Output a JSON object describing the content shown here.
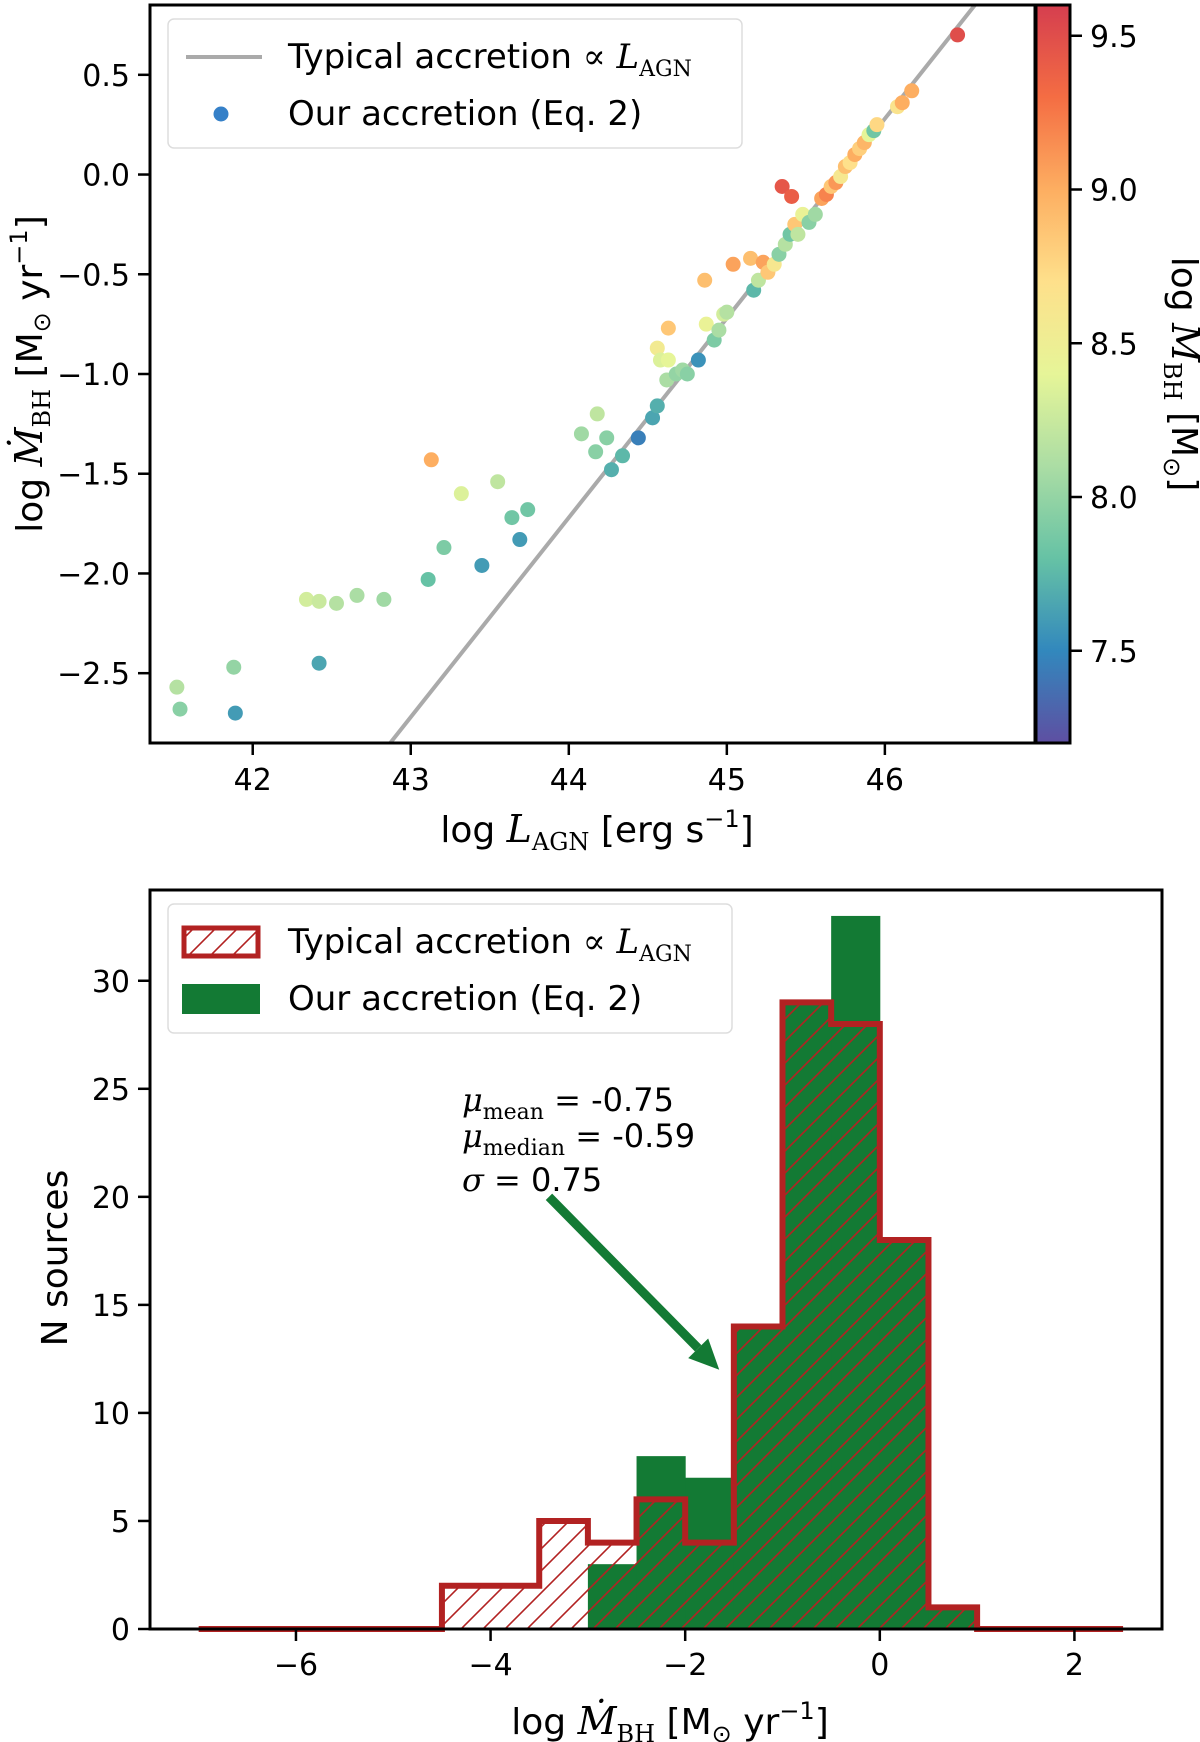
{
  "chart_data": [
    {
      "type": "scatter",
      "xlabel": "log L_AGN [erg s^-1]",
      "ylabel": "log Ṁ_BH [M⊙ yr^-1]",
      "xlim": [
        41.35,
        46.95
      ],
      "ylim": [
        -2.85,
        0.85
      ],
      "xticks": [
        42,
        43,
        44,
        45,
        46
      ],
      "yticks": [
        -2.5,
        -2.0,
        -1.5,
        -1.0,
        -0.5,
        0.0,
        0.5
      ],
      "grid": false,
      "legend": {
        "position": "top-left",
        "entries": [
          {
            "label": "Typical accretion ∝ L_AGN",
            "kind": "line",
            "color": "#aaaaaa"
          },
          {
            "label": "Our accretion (Eq. 2)",
            "kind": "marker",
            "color": "#3580c8"
          }
        ]
      },
      "line": {
        "name": "Typical accretion ∝ L_AGN",
        "slope": 1.0,
        "intercept": -45.72,
        "color": "#aaaaaa"
      },
      "colorbar": {
        "label": "log M_BH [M⊙]",
        "range": [
          7.2,
          9.6
        ],
        "ticks": [
          7.5,
          8.0,
          8.5,
          9.0,
          9.5
        ],
        "colormap": "spectral",
        "stops": [
          "#5e4fa2",
          "#3288bd",
          "#66c2a5",
          "#abdda4",
          "#e6f598",
          "#fee08b",
          "#fdae61",
          "#f46d43",
          "#d53e4f"
        ]
      },
      "points": [
        {
          "x": 41.52,
          "y": -2.57,
          "c": 8.15
        },
        {
          "x": 41.54,
          "y": -2.68,
          "c": 7.95
        },
        {
          "x": 41.88,
          "y": -2.47,
          "c": 8.0
        },
        {
          "x": 41.89,
          "y": -2.7,
          "c": 7.6
        },
        {
          "x": 42.34,
          "y": -2.13,
          "c": 8.3
        },
        {
          "x": 42.42,
          "y": -2.14,
          "c": 8.25
        },
        {
          "x": 42.42,
          "y": -2.45,
          "c": 7.65
        },
        {
          "x": 42.53,
          "y": -2.15,
          "c": 8.15
        },
        {
          "x": 42.66,
          "y": -2.11,
          "c": 8.1
        },
        {
          "x": 42.83,
          "y": -2.13,
          "c": 8.05
        },
        {
          "x": 43.11,
          "y": -2.03,
          "c": 7.8
        },
        {
          "x": 43.13,
          "y": -1.43,
          "c": 9.0
        },
        {
          "x": 43.21,
          "y": -1.87,
          "c": 7.9
        },
        {
          "x": 43.32,
          "y": -1.6,
          "c": 8.35
        },
        {
          "x": 43.45,
          "y": -1.96,
          "c": 7.6
        },
        {
          "x": 43.55,
          "y": -1.54,
          "c": 8.2
        },
        {
          "x": 43.64,
          "y": -1.72,
          "c": 7.85
        },
        {
          "x": 43.69,
          "y": -1.83,
          "c": 7.6
        },
        {
          "x": 43.74,
          "y": -1.68,
          "c": 7.85
        },
        {
          "x": 44.08,
          "y": -1.3,
          "c": 8.05
        },
        {
          "x": 44.18,
          "y": -1.2,
          "c": 8.2
        },
        {
          "x": 44.17,
          "y": -1.39,
          "c": 7.95
        },
        {
          "x": 44.24,
          "y": -1.32,
          "c": 7.95
        },
        {
          "x": 44.27,
          "y": -1.48,
          "c": 7.7
        },
        {
          "x": 44.34,
          "y": -1.41,
          "c": 7.75
        },
        {
          "x": 44.44,
          "y": -1.32,
          "c": 7.45
        },
        {
          "x": 44.53,
          "y": -1.22,
          "c": 7.65
        },
        {
          "x": 44.56,
          "y": -1.16,
          "c": 7.7
        },
        {
          "x": 44.56,
          "y": -0.87,
          "c": 8.55
        },
        {
          "x": 44.58,
          "y": -0.93,
          "c": 8.35
        },
        {
          "x": 44.62,
          "y": -1.03,
          "c": 8.1
        },
        {
          "x": 44.63,
          "y": -0.93,
          "c": 8.4
        },
        {
          "x": 44.63,
          "y": -0.77,
          "c": 8.85
        },
        {
          "x": 44.68,
          "y": -1.0,
          "c": 8.0
        },
        {
          "x": 44.72,
          "y": -0.98,
          "c": 8.05
        },
        {
          "x": 44.75,
          "y": -1.0,
          "c": 7.95
        },
        {
          "x": 44.82,
          "y": -0.93,
          "c": 7.55
        },
        {
          "x": 44.86,
          "y": -0.53,
          "c": 8.9
        },
        {
          "x": 44.87,
          "y": -0.75,
          "c": 8.45
        },
        {
          "x": 44.92,
          "y": -0.83,
          "c": 7.9
        },
        {
          "x": 44.95,
          "y": -0.78,
          "c": 8.1
        },
        {
          "x": 44.98,
          "y": -0.7,
          "c": 8.3
        },
        {
          "x": 45.0,
          "y": -0.69,
          "c": 8.15
        },
        {
          "x": 45.04,
          "y": -0.45,
          "c": 9.05
        },
        {
          "x": 45.15,
          "y": -0.42,
          "c": 8.9
        },
        {
          "x": 45.17,
          "y": -0.58,
          "c": 7.75
        },
        {
          "x": 45.2,
          "y": -0.53,
          "c": 8.2
        },
        {
          "x": 45.23,
          "y": -0.44,
          "c": 9.05
        },
        {
          "x": 45.26,
          "y": -0.49,
          "c": 8.85
        },
        {
          "x": 45.3,
          "y": -0.45,
          "c": 8.6
        },
        {
          "x": 45.33,
          "y": -0.4,
          "c": 7.95
        },
        {
          "x": 45.35,
          "y": -0.06,
          "c": 9.45
        },
        {
          "x": 45.37,
          "y": -0.35,
          "c": 8.15
        },
        {
          "x": 45.4,
          "y": -0.3,
          "c": 7.85
        },
        {
          "x": 45.41,
          "y": -0.11,
          "c": 9.4
        },
        {
          "x": 45.43,
          "y": -0.25,
          "c": 8.85
        },
        {
          "x": 45.45,
          "y": -0.3,
          "c": 8.2
        },
        {
          "x": 45.48,
          "y": -0.2,
          "c": 8.45
        },
        {
          "x": 45.52,
          "y": -0.24,
          "c": 7.95
        },
        {
          "x": 45.56,
          "y": -0.2,
          "c": 8.05
        },
        {
          "x": 45.6,
          "y": -0.12,
          "c": 9.05
        },
        {
          "x": 45.63,
          "y": -0.1,
          "c": 9.2
        },
        {
          "x": 45.66,
          "y": -0.06,
          "c": 8.85
        },
        {
          "x": 45.69,
          "y": -0.04,
          "c": 9.1
        },
        {
          "x": 45.72,
          "y": -0.01,
          "c": 8.6
        },
        {
          "x": 45.75,
          "y": 0.04,
          "c": 8.9
        },
        {
          "x": 45.78,
          "y": 0.06,
          "c": 8.7
        },
        {
          "x": 45.81,
          "y": 0.1,
          "c": 9.0
        },
        {
          "x": 45.84,
          "y": 0.13,
          "c": 8.8
        },
        {
          "x": 45.87,
          "y": 0.16,
          "c": 8.95
        },
        {
          "x": 45.9,
          "y": 0.2,
          "c": 8.4
        },
        {
          "x": 45.93,
          "y": 0.22,
          "c": 7.85
        },
        {
          "x": 45.95,
          "y": 0.25,
          "c": 8.75
        },
        {
          "x": 46.08,
          "y": 0.34,
          "c": 8.65
        },
        {
          "x": 46.11,
          "y": 0.36,
          "c": 9.0
        },
        {
          "x": 46.17,
          "y": 0.42,
          "c": 9.0
        },
        {
          "x": 46.46,
          "y": 0.7,
          "c": 9.5
        }
      ]
    },
    {
      "type": "bar",
      "subtype": "histogram",
      "xlabel": "log Ṁ_BH [M⊙ yr^-1]",
      "ylabel": "N sources",
      "xlim": [
        -7.5,
        2.9
      ],
      "ylim": [
        0,
        34.2
      ],
      "xticks": [
        -6,
        -4,
        -2,
        0,
        2
      ],
      "yticks": [
        0,
        5,
        10,
        15,
        20,
        25,
        30
      ],
      "grid": false,
      "legend": {
        "position": "top-left",
        "entries": [
          {
            "label": "Typical accretion ∝ L_AGN",
            "kind": "hatched-outline",
            "color": "#b22222"
          },
          {
            "label": "Our accretion (Eq. 2)",
            "kind": "filled",
            "color": "#137a34"
          }
        ]
      },
      "bin_edges": [
        -7.0,
        -6.5,
        -6.0,
        -5.5,
        -5.0,
        -4.5,
        -4.0,
        -3.5,
        -3.0,
        -2.5,
        -2.0,
        -1.5,
        -1.0,
        -0.5,
        0.0,
        0.5,
        1.0,
        1.5,
        2.0,
        2.5
      ],
      "series": [
        {
          "name": "Our accretion (Eq. 2)",
          "style": "filled",
          "color": "#137a34",
          "values": [
            0,
            0,
            0,
            0,
            0,
            0,
            0,
            0,
            3,
            8,
            7,
            14,
            29,
            33,
            18,
            1,
            0,
            0,
            0
          ]
        },
        {
          "name": "Typical accretion ∝ L_AGN",
          "style": "step-hatched",
          "color": "#b22222",
          "values": [
            0,
            0,
            0,
            0,
            0,
            2,
            2,
            5,
            4,
            6,
            4,
            14,
            29,
            28,
            18,
            1,
            0,
            0,
            0
          ]
        }
      ],
      "annotation": {
        "lines": [
          "μmean = -0.75",
          "μmedian = -0.59",
          "σ = 0.75"
        ],
        "arrow_from": [
          -3.4,
          20.0
        ],
        "arrow_to": [
          -1.65,
          12.0
        ],
        "arrow_color": "#137a34"
      }
    }
  ]
}
